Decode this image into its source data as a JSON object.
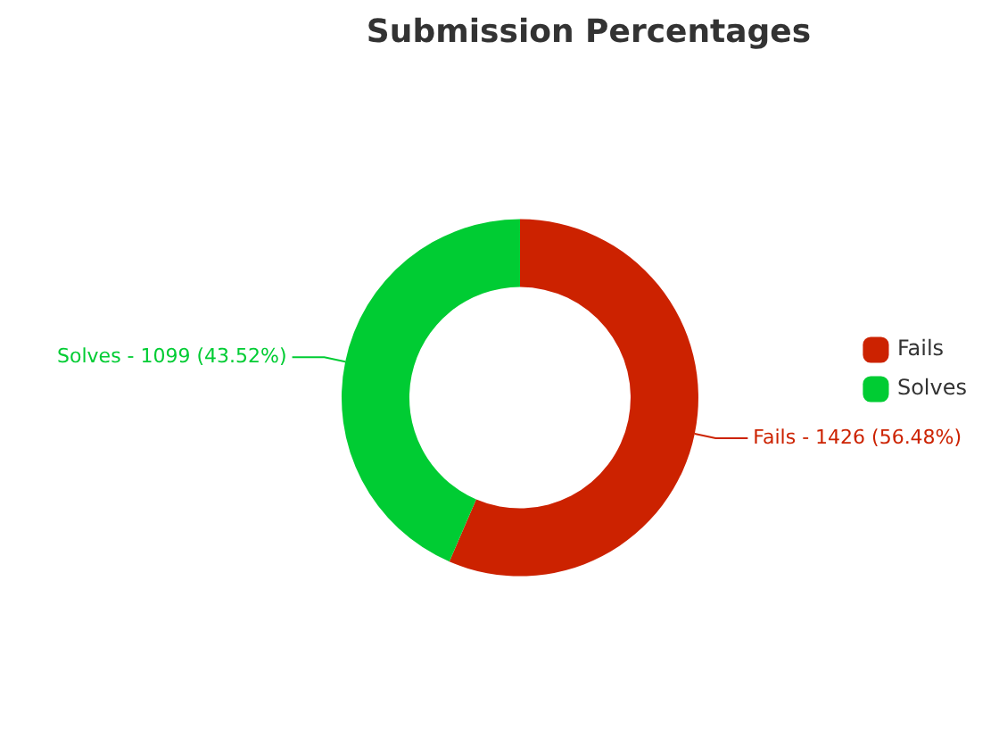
{
  "chart_data": {
    "type": "donut",
    "title": "Submission Percentages",
    "categories": [
      "Fails",
      "Solves"
    ],
    "values": [
      56.48,
      43.52
    ],
    "colors": [
      "#cc2200",
      "#00cc33"
    ],
    "value_labels": [
      "Fails - 1426 (56.48%)",
      "Solves - 1099 (43.52%)"
    ],
    "legend": "right"
  }
}
